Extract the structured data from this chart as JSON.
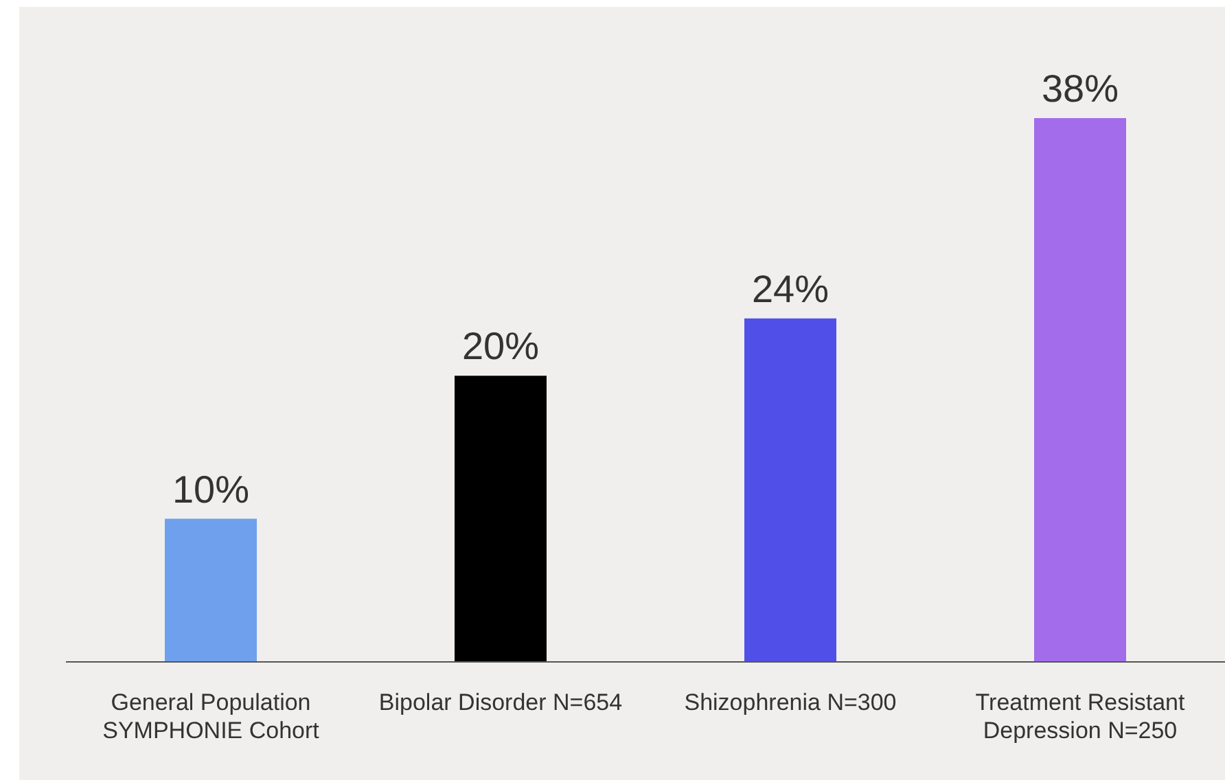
{
  "chart_data": {
    "type": "bar",
    "categories": [
      "General Population SYMPHONIE Cohort",
      "Bipolar Disorder N=654",
      "Shizophrenia N=300",
      "Treatment Resistant Depression N=250"
    ],
    "values": [
      10,
      20,
      24,
      38
    ],
    "colors": [
      "#6fa0ee",
      "#000000",
      "#5050e8",
      "#a36ceb"
    ],
    "value_labels": [
      "10%",
      "20%",
      "24%",
      "38%"
    ],
    "grid": false,
    "legend": false
  }
}
